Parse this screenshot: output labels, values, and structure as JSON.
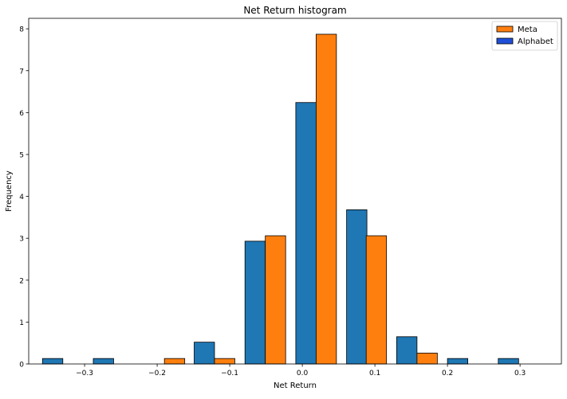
{
  "chart_data": {
    "type": "bar",
    "title": "Net Return histogram",
    "xlabel": "Net Return",
    "ylabel": "Frequency",
    "xlim": [
      -0.377,
      0.357
    ],
    "ylim": [
      0,
      8.25
    ],
    "bar_width": 0.028,
    "x_ticks": [
      -0.3,
      -0.2,
      -0.1,
      0.0,
      0.1,
      0.2,
      0.3
    ],
    "x_tick_labels": [
      "−0.3",
      "−0.2",
      "−0.1",
      "0.0",
      "0.1",
      "0.2",
      "0.3"
    ],
    "y_ticks": [
      0,
      1,
      2,
      3,
      4,
      5,
      6,
      7,
      8
    ],
    "y_tick_labels": [
      "0",
      "1",
      "2",
      "3",
      "4",
      "5",
      "6",
      "7",
      "8"
    ],
    "grid": false,
    "legend_position": "top-right",
    "legend": [
      {
        "name": "Meta",
        "color": "#ff7f0e"
      },
      {
        "name": "Alphabet",
        "color": "#1f4fd8"
      }
    ],
    "series": [
      {
        "name": "Alphabet",
        "color": "#1f77b4",
        "x": [
          -0.344,
          -0.274,
          -0.135,
          -0.065,
          0.005,
          0.075,
          0.144,
          0.214,
          0.284
        ],
        "values": [
          0.13,
          0.13,
          0.52,
          2.93,
          6.24,
          3.68,
          0.65,
          0.13,
          0.13
        ]
      },
      {
        "name": "Meta",
        "color": "#ff7f0e",
        "x": [
          -0.176,
          -0.107,
          -0.037,
          0.033,
          0.102,
          0.172
        ],
        "values": [
          0.13,
          0.13,
          3.06,
          7.87,
          3.06,
          0.26
        ]
      }
    ]
  }
}
